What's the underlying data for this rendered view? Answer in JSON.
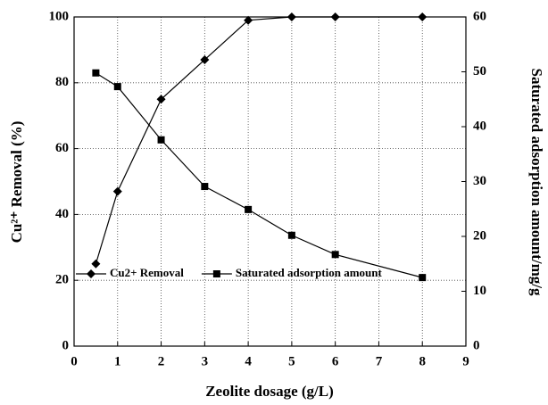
{
  "chart_data": {
    "type": "line",
    "xlabel": "Zeolite dosage (g/L)",
    "ylabel": "Cu²⁺ Removal (%)",
    "y2label": "Saturated adsorption amount/mg/g",
    "x": [
      0.5,
      1,
      2,
      3,
      4,
      5,
      6,
      8
    ],
    "series": [
      {
        "name": "Cu2+ Removal",
        "color": "#000000",
        "marker": "diamond",
        "values": [
          25,
          47,
          75,
          87,
          99,
          100,
          100,
          100
        ]
      },
      {
        "name": "Saturated adsorption amount",
        "color": "#000000",
        "marker": "square",
        "axis": "y2",
        "values": [
          49.8,
          47.3,
          37.6,
          29.1,
          24.9,
          20.2,
          16.7,
          12.5
        ]
      }
    ],
    "xlim": [
      0,
      9
    ],
    "xticks": [
      0,
      1,
      2,
      3,
      4,
      5,
      6,
      7,
      8,
      9
    ],
    "ylim": [
      0,
      100
    ],
    "yticks": [
      0,
      20,
      40,
      60,
      80,
      100
    ],
    "y2lim": [
      0,
      60
    ],
    "y2ticks": [
      0,
      10,
      20,
      30,
      40,
      50,
      60
    ],
    "grid": true,
    "legend": "lower left"
  }
}
